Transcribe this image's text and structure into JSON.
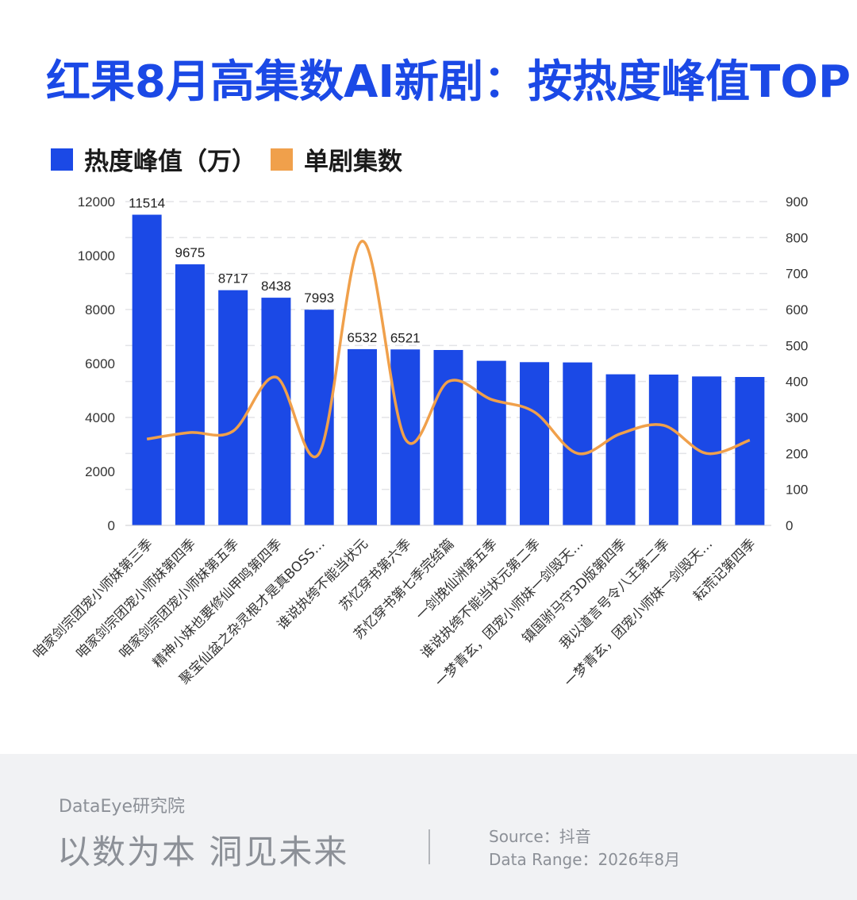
{
  "title": "红果8月高集数AI新剧：按热度峰值TOP",
  "legend": {
    "items": [
      {
        "label": "热度峰值（万）",
        "color": "#1b49e6"
      },
      {
        "label": "单剧集数",
        "color": "#f0a04b"
      }
    ]
  },
  "chart_data": {
    "type": "bar",
    "categories": [
      "咱家剑宗团宠小师妹第三季",
      "咱家剑宗团宠小师妹第四季",
      "咱家剑宗团宠小师妹第五季",
      "精神小妹也要修仙甲鸣第四季",
      "聚宝仙盆之杂灵根才是真BOSS…",
      "谁说执绔不能当状元",
      "苏忆穿书第六季",
      "苏忆穿书第七季完结篇",
      "一剑挽仙洲第五季",
      "谁说执绔不能当状元第二季",
      "一梦青玄，团宠小师妹一剑毁天…",
      "镇国驸马守3D版第四季",
      "我以道言号令八王第二季",
      "一梦青玄，团宠小师妹一剑毁天…",
      "耘荒记第四季"
    ],
    "series": [
      {
        "name": "热度峰值（万）",
        "axis": "left",
        "type": "bar",
        "color": "#1b49e6",
        "values": [
          11514,
          9675,
          8717,
          8438,
          7993,
          6532,
          6521,
          6500,
          6100,
          6050,
          6040,
          5600,
          5590,
          5520,
          5500
        ]
      },
      {
        "name": "单剧集数",
        "axis": "right",
        "type": "line",
        "color": "#f0a04b",
        "values": [
          240,
          258,
          262,
          412,
          200,
          790,
          240,
          400,
          350,
          315,
          200,
          255,
          278,
          200,
          237
        ]
      }
    ],
    "data_labels": [
      "11514",
      "9675",
      "8717",
      "8438",
      "7993",
      "6532",
      "6521"
    ],
    "y_left": {
      "ticks": [
        "0",
        "2000",
        "4000",
        "6000",
        "8000",
        "10000",
        "12000"
      ],
      "lim": [
        0,
        12000
      ]
    },
    "y_right": {
      "ticks": [
        "0",
        "100",
        "200",
        "300",
        "400",
        "500",
        "600",
        "700",
        "800",
        "900"
      ],
      "lim": [
        0,
        900
      ]
    },
    "grid": "dashed horizontal",
    "legend_position": "top-left"
  },
  "footer": {
    "brand": "DataEye研究院",
    "slogan": "以数为本 洞见未来",
    "source": "Source：抖音",
    "range": "Data Range：2026年8月"
  }
}
